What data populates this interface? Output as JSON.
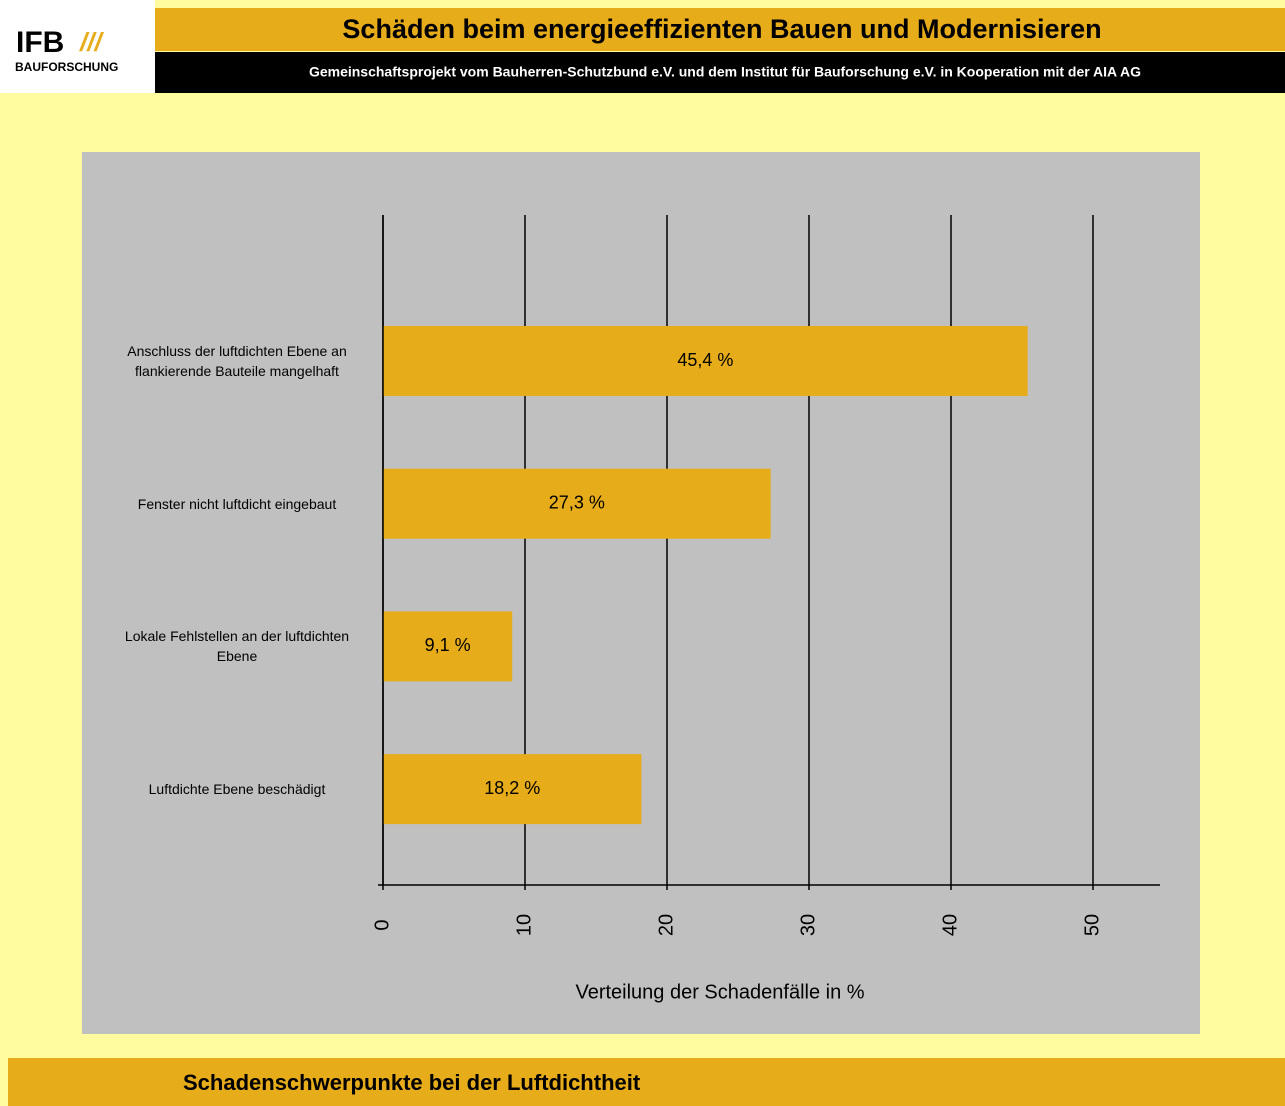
{
  "header": {
    "logo": {
      "text": "IFB",
      "mark": "///",
      "subtitle": "BAUFORSCHUNG"
    },
    "title": "Schäden beim energieeffizienten Bauen und Modernisieren",
    "subtitle": "Gemeinschaftsprojekt vom Bauherren-Schutzbund e.V. und dem Institut für Bauforschung e.V. in Kooperation mit der AIA AG"
  },
  "chart_data": {
    "type": "hbar",
    "categories": [
      "Anschluss der luftdichten Ebene an flankierende Bauteile mangelhaft",
      "Fenster nicht luftdicht eingebaut",
      "Lokale Fehlstellen an der luftdichten Ebene",
      "Luftdichte Ebene beschädigt"
    ],
    "values": [
      45.4,
      27.3,
      9.1,
      18.2
    ],
    "value_labels": [
      "45,4 %",
      "27,3 %",
      "9,1 %",
      "18,2 %"
    ],
    "color": "#e6ac1a",
    "xlabel": "Verteilung der Schadenfälle in %",
    "xlim": [
      0,
      55
    ],
    "xticks": [
      0,
      10,
      20,
      30,
      40,
      50
    ],
    "grid": true
  },
  "footer": {
    "title": "Schadenschwerpunkte bei der Luftdichtheit"
  }
}
